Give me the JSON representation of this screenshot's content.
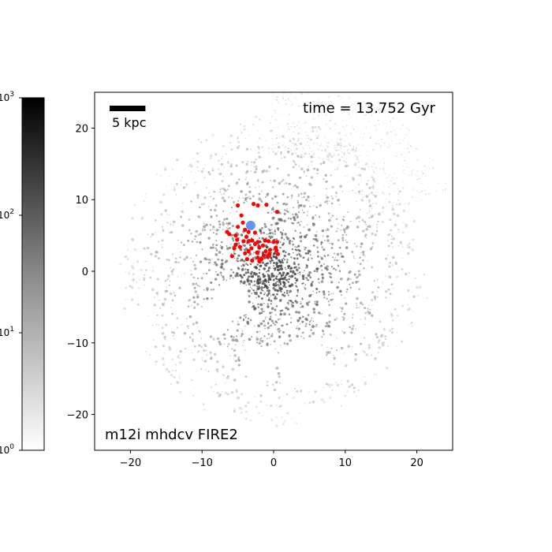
{
  "chart_data": {
    "type": "scatter",
    "title": "",
    "xlabel": "",
    "ylabel": "",
    "xlim": [
      -25,
      25
    ],
    "ylim": [
      -25,
      25
    ],
    "x_ticks": [
      -20,
      -10,
      0,
      10,
      20
    ],
    "y_ticks": [
      -20,
      -10,
      0,
      10,
      20
    ],
    "x_tick_labels": [
      "−20",
      "−10",
      "0",
      "10",
      "20"
    ],
    "y_tick_labels": [
      "−20",
      "−10",
      "0",
      "10",
      "20"
    ],
    "grid": false,
    "annotations": {
      "time": "time = 13.752 Gyr",
      "simulation": "m12i mhdcv FIRE2",
      "scalebar": "5 kpc"
    },
    "scalebar_kpc": 5,
    "colorbar": {
      "scale": "log",
      "range": [
        1,
        1000
      ],
      "colormap": "Greys",
      "labels": [
        {
          "value": 1000,
          "base": "10",
          "exp": "3"
        },
        {
          "value": 100,
          "base": "10",
          "exp": "2"
        },
        {
          "value": 10,
          "base": "10",
          "exp": "1"
        },
        {
          "value": 1,
          "base": "10",
          "exp": "0"
        }
      ]
    },
    "series": [
      {
        "marker_color": "#ff0000",
        "points": [
          [
            -5.0,
            9.2
          ],
          [
            -2.8,
            9.4
          ],
          [
            -2.2,
            9.2
          ],
          [
            -1.0,
            9.3
          ],
          [
            0.5,
            8.3
          ],
          [
            -4.5,
            7.8
          ],
          [
            -5.0,
            6.2
          ],
          [
            -4.3,
            6.8
          ],
          [
            -4.0,
            5.8
          ],
          [
            -3.5,
            5.5
          ],
          [
            -2.6,
            5.4
          ],
          [
            -6.5,
            5.5
          ],
          [
            -6.2,
            5.2
          ],
          [
            -5.3,
            5.0
          ],
          [
            -5.1,
            4.4
          ],
          [
            -3.8,
            4.8
          ],
          [
            -4.2,
            4.2
          ],
          [
            -3.5,
            4.2
          ],
          [
            -3.0,
            4.3
          ],
          [
            -2.2,
            4.1
          ],
          [
            -1.2,
            4.3
          ],
          [
            -0.7,
            4.2
          ],
          [
            0.0,
            4.1
          ],
          [
            0.5,
            4.1
          ],
          [
            -5.3,
            3.7
          ],
          [
            -5.5,
            3.2
          ],
          [
            -4.7,
            3.4
          ],
          [
            -3.1,
            3.2
          ],
          [
            -2.6,
            3.8
          ],
          [
            -2.0,
            3.3
          ],
          [
            -1.5,
            3.6
          ],
          [
            -0.5,
            3.0
          ],
          [
            0.3,
            3.3
          ],
          [
            -4.0,
            2.5
          ],
          [
            -3.5,
            2.8
          ],
          [
            -2.3,
            2.6
          ],
          [
            -1.1,
            2.8
          ],
          [
            -0.6,
            2.4
          ],
          [
            0.4,
            2.9
          ],
          [
            0.6,
            2.4
          ],
          [
            -5.8,
            2.1
          ],
          [
            -3.7,
            1.7
          ],
          [
            -2.2,
            1.9
          ],
          [
            -1.7,
            1.7
          ],
          [
            -0.8,
            2.0
          ],
          [
            -3.0,
            1.5
          ],
          [
            -2.0,
            1.4
          ],
          [
            -1.4,
            2.2
          ]
        ]
      },
      {
        "marker_color": "#6495ed",
        "points": [
          [
            -3.2,
            6.4
          ]
        ]
      }
    ]
  }
}
